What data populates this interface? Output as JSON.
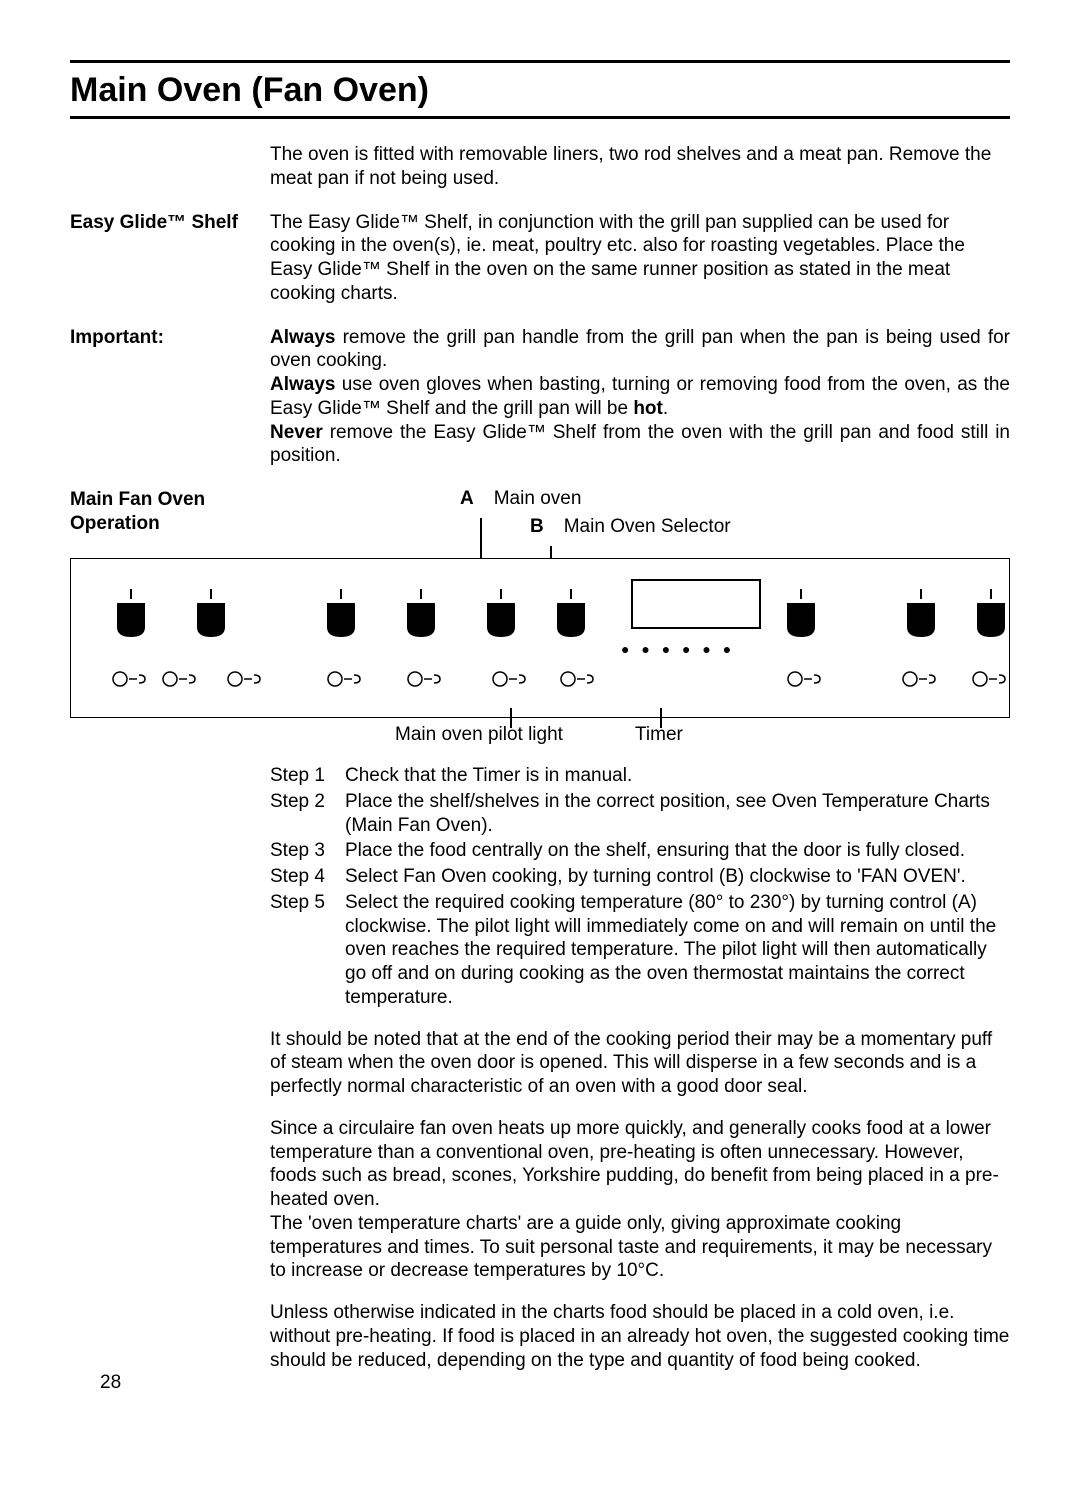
{
  "page": {
    "title": "Main  Oven (Fan Oven)",
    "pageNumber": "28"
  },
  "intro": "The oven is fitted with removable liners, two rod shelves and a meat pan. Remove the meat pan if not being used.",
  "easyGlide": {
    "label": "Easy Glide™ Shelf",
    "text": "The Easy Glide™ Shelf, in conjunction with the grill pan supplied can be used for cooking in the oven(s), ie. meat, poultry etc. also for roasting vegetables.  Place the Easy Glide™ Shelf in the oven on the same runner position as stated in the meat cooking charts."
  },
  "important": {
    "label": "Important:",
    "always1_bold": "Always",
    "always1_rest": " remove the grill pan handle from the grill pan when the pan is being used for oven cooking.",
    "always2_bold": "Always",
    "always2_rest": " use oven gloves when basting, turning or removing food from the oven, as the Easy Glide™ Shelf and the grill pan will be ",
    "hot": "hot",
    "period": ".",
    "never_bold": "Never",
    "never_rest": " remove the Easy Glide™ Shelf from the oven with the grill pan and food still in position."
  },
  "operation": {
    "label": "Main Fan Oven Operation",
    "A_letter": "A",
    "A_text": "Main oven",
    "B_letter": "B",
    "B_text": "Main Oven Selector",
    "pilot_label": "Main oven pilot light",
    "timer_label": "Timer"
  },
  "steps": {
    "s1_num": "Step 1",
    "s1_text": "Check that the Timer is in manual.",
    "s2_num": "Step 2",
    "s2_text": "Place the shelf/shelves in the correct position, see Oven Temperature Charts (Main Fan Oven).",
    "s3_num": "Step 3",
    "s3_text": "Place the food centrally on the shelf, ensuring that the door is fully closed.",
    "s4_num": "Step 4",
    "s4_text": "Select Fan Oven cooking, by turning control (B) clockwise to 'FAN OVEN'.",
    "s5_num": "Step 5",
    "s5_text": "Select the required cooking temperature (80° to 230°) by turning control (A) clockwise.  The pilot light will immediately come on and will remain on until the oven reaches the required temperature.  The pilot light will then automatically go off and on during cooking as the oven thermostat maintains the correct temperature."
  },
  "notes": {
    "p1": "It should be noted that at the end of the cooking period their may be a momentary puff of steam when the oven door is opened. This will disperse in a few seconds and is a perfectly normal characteristic of an oven with a good door seal.",
    "p2": "Since a circulaire fan oven heats up more quickly, and generally cooks food at a lower temperature than a conventional oven, pre-heating is often unnecessary. However, foods such as bread, scones, Yorkshire   pudding, do benefit from being placed in a pre-heated oven.",
    "p3": "The 'oven temperature charts' are a guide only, giving approximate cooking temperatures and times. To suit personal taste and requirements, it may be necessary to increase or decrease temperatures by 10°C.",
    "p4": "Unless otherwise indicated in the charts food should be placed in a cold oven, i.e. without pre-heating. If food is placed in an already hot oven, the suggested cooking time should be reduced, depending on the type and quantity of food being cooked."
  },
  "diagram": {
    "knob_positions": [
      40,
      120,
      250,
      330,
      410,
      480,
      710,
      830,
      900
    ],
    "indicator_positions": [
      40,
      90,
      155,
      255,
      335,
      420,
      488,
      715,
      830,
      900
    ],
    "knob_color": "#000000",
    "border_color": "#000000",
    "bg_color": "#ffffff"
  }
}
